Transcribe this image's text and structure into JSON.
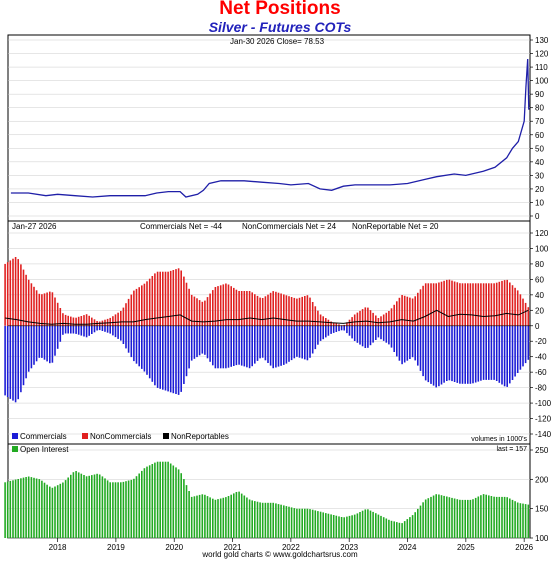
{
  "header": {
    "title": "Net Positions",
    "subtitle": "Silver - Futures COTs"
  },
  "footer": {
    "credit": "world gold charts © www.goldchartsrus.com"
  },
  "colors": {
    "price": "#1f1fa8",
    "commercials": "#1c1cd6",
    "noncommercials": "#e02020",
    "nonreportables": "#000000",
    "open_interest": "#22aa22"
  },
  "chart_data": [
    {
      "type": "line",
      "panel": "price",
      "annotation": "Jan-30  2026   Close= 78.53",
      "ylim": [
        0,
        130
      ],
      "yticks": [
        0,
        10,
        20,
        30,
        40,
        50,
        60,
        70,
        80,
        90,
        100,
        110,
        120,
        130
      ],
      "x": [
        2017.2,
        2017.5,
        2017.8,
        2018.0,
        2018.3,
        2018.6,
        2018.9,
        2019.2,
        2019.5,
        2019.7,
        2019.9,
        2020.1,
        2020.2,
        2020.4,
        2020.5,
        2020.6,
        2020.8,
        2021.0,
        2021.2,
        2021.5,
        2021.8,
        2022.0,
        2022.3,
        2022.5,
        2022.7,
        2022.9,
        2023.1,
        2023.4,
        2023.7,
        2024.0,
        2024.3,
        2024.5,
        2024.8,
        2025.0,
        2025.3,
        2025.5,
        2025.7,
        2025.8,
        2025.9,
        2026.0,
        2026.03,
        2026.06,
        2026.08
      ],
      "values": [
        17,
        17,
        15,
        16,
        15,
        14,
        15,
        15,
        15,
        17,
        18,
        18,
        14,
        16,
        19,
        24,
        26,
        26,
        26,
        25,
        24,
        23,
        24,
        20,
        19,
        22,
        23,
        23,
        23,
        24,
        27,
        29,
        31,
        30,
        33,
        36,
        43,
        50,
        55,
        70,
        95,
        116,
        78.53
      ]
    },
    {
      "type": "bar",
      "panel": "net_positions",
      "annotation_date": "Jan-27  2026",
      "annotations": {
        "commercials": "Commercials Net = -44",
        "noncommercials": "NonCommercials Net = 24",
        "nonreportables": "NonReportable Net = 20"
      },
      "ylim": [
        -140,
        120
      ],
      "yticks": [
        -140,
        -120,
        -100,
        -80,
        -60,
        -40,
        -20,
        0,
        20,
        40,
        60,
        80,
        100,
        120
      ],
      "x": [
        2017.1,
        2017.3,
        2017.5,
        2017.7,
        2017.9,
        2018.1,
        2018.3,
        2018.5,
        2018.7,
        2018.9,
        2019.1,
        2019.3,
        2019.5,
        2019.7,
        2019.9,
        2020.1,
        2020.3,
        2020.5,
        2020.7,
        2020.9,
        2021.1,
        2021.3,
        2021.5,
        2021.7,
        2021.9,
        2022.1,
        2022.3,
        2022.5,
        2022.7,
        2022.9,
        2023.1,
        2023.3,
        2023.5,
        2023.7,
        2023.9,
        2024.1,
        2024.3,
        2024.5,
        2024.7,
        2024.9,
        2025.1,
        2025.3,
        2025.5,
        2025.7,
        2025.9,
        2026.07
      ],
      "series": [
        {
          "name": "Commercials",
          "values": [
            -90,
            -100,
            -60,
            -40,
            -50,
            -10,
            -10,
            -15,
            -5,
            -10,
            -20,
            -45,
            -60,
            -80,
            -85,
            -90,
            -45,
            -35,
            -55,
            -55,
            -50,
            -55,
            -40,
            -55,
            -50,
            -40,
            -45,
            -20,
            -10,
            -5,
            -20,
            -30,
            -15,
            -25,
            -50,
            -40,
            -70,
            -80,
            -70,
            -75,
            -75,
            -70,
            -70,
            -80,
            -60,
            -44
          ]
        },
        {
          "name": "NonCommercials",
          "values": [
            80,
            90,
            60,
            40,
            45,
            15,
            10,
            15,
            5,
            10,
            20,
            45,
            55,
            70,
            70,
            75,
            40,
            30,
            50,
            55,
            45,
            45,
            35,
            45,
            40,
            35,
            40,
            15,
            5,
            0,
            15,
            25,
            10,
            20,
            40,
            35,
            55,
            55,
            60,
            55,
            55,
            55,
            55,
            60,
            45,
            24
          ]
        },
        {
          "name": "NonReportables",
          "values": [
            10,
            8,
            5,
            3,
            2,
            3,
            2,
            2,
            3,
            4,
            5,
            5,
            8,
            10,
            12,
            14,
            6,
            5,
            6,
            8,
            8,
            10,
            8,
            10,
            8,
            6,
            6,
            5,
            4,
            3,
            5,
            6,
            4,
            5,
            8,
            6,
            12,
            20,
            12,
            15,
            14,
            12,
            13,
            16,
            14,
            20
          ]
        }
      ],
      "legend": [
        "Commercials",
        "NonCommercials",
        "NonReportables"
      ],
      "note": "volumes in 1000's"
    },
    {
      "type": "bar",
      "panel": "open_interest",
      "legend": [
        "Open Interest"
      ],
      "last_label": "last = 157",
      "ylim": [
        100,
        250
      ],
      "yticks": [
        100,
        150,
        200,
        250
      ],
      "x": [
        2017.1,
        2017.3,
        2017.5,
        2017.7,
        2017.9,
        2018.1,
        2018.3,
        2018.5,
        2018.7,
        2018.9,
        2019.1,
        2019.3,
        2019.5,
        2019.7,
        2019.9,
        2020.1,
        2020.3,
        2020.5,
        2020.7,
        2020.9,
        2021.1,
        2021.3,
        2021.5,
        2021.7,
        2021.9,
        2022.1,
        2022.3,
        2022.5,
        2022.7,
        2022.9,
        2023.1,
        2023.3,
        2023.5,
        2023.7,
        2023.9,
        2024.1,
        2024.3,
        2024.5,
        2024.7,
        2024.9,
        2025.1,
        2025.3,
        2025.5,
        2025.7,
        2025.9,
        2026.07
      ],
      "values": [
        195,
        200,
        205,
        200,
        185,
        195,
        215,
        205,
        210,
        195,
        195,
        200,
        220,
        230,
        230,
        215,
        170,
        175,
        165,
        170,
        180,
        165,
        160,
        160,
        155,
        150,
        150,
        145,
        140,
        135,
        140,
        150,
        140,
        130,
        125,
        140,
        165,
        175,
        170,
        165,
        165,
        175,
        170,
        170,
        160,
        157
      ]
    }
  ],
  "xaxis": {
    "ticks": [
      "2018",
      "2019",
      "2020",
      "2021",
      "2022",
      "2023",
      "2024",
      "2025",
      "2026"
    ],
    "range": [
      2017.15,
      2026.1
    ]
  }
}
